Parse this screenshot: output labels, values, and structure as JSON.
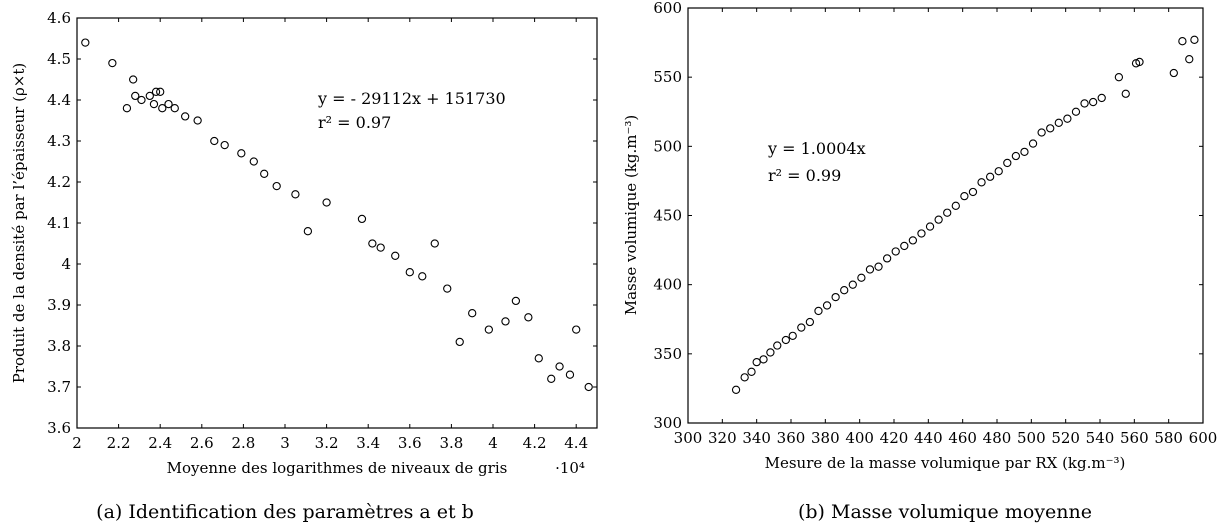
{
  "chart_data": [
    {
      "type": "scatter",
      "xlabel": "Moyenne des logarithmes de niveaux de gris",
      "ylabel": "Produit de la densité par l’épaisseur (ρ×t)",
      "x_multiplier": "·10⁴",
      "xlim": [
        2.0,
        4.5
      ],
      "ylim": [
        3.6,
        4.6
      ],
      "xticks": [
        "2",
        "2.2",
        "2.4",
        "2.6",
        "2.8",
        "3",
        "3.2",
        "3.4",
        "3.6",
        "3.8",
        "4",
        "4.2",
        "4.4"
      ],
      "yticks": [
        "3.6",
        "3.7",
        "3.8",
        "3.9",
        "4",
        "4.1",
        "4.2",
        "4.3",
        "4.4",
        "4.5",
        "4.6"
      ],
      "annotations": [
        "y = - 29112x + 151730",
        "r² = 0.97"
      ],
      "caption": "(a) Identification des paramètres a et b",
      "grid": false,
      "regression": {
        "slope": -29112,
        "intercept": 151730,
        "r2": 0.97
      },
      "series": [
        {
          "x": [
            2.04,
            2.17,
            2.27,
            2.28,
            2.31,
            2.35,
            2.37,
            2.38,
            2.4,
            2.41,
            2.44,
            2.47,
            2.24,
            2.52,
            2.58,
            2.66,
            2.71,
            2.79,
            2.85,
            2.9,
            2.96,
            3.05,
            3.11,
            3.2,
            3.37,
            3.42,
            3.46,
            3.53,
            3.6,
            3.66,
            3.72,
            3.78,
            3.84,
            3.9,
            3.98,
            4.06,
            4.11,
            4.17,
            4.22,
            4.28,
            4.32,
            4.37,
            4.4,
            4.46
          ],
          "y": [
            4.54,
            4.49,
            4.45,
            4.41,
            4.4,
            4.41,
            4.39,
            4.42,
            4.42,
            4.38,
            4.39,
            4.38,
            4.38,
            4.36,
            4.35,
            4.3,
            4.29,
            4.27,
            4.25,
            4.22,
            4.19,
            4.17,
            4.08,
            4.15,
            4.11,
            4.05,
            4.04,
            4.02,
            3.98,
            3.97,
            4.05,
            3.94,
            3.81,
            3.88,
            3.84,
            3.86,
            3.91,
            3.87,
            3.77,
            3.72,
            3.75,
            3.73,
            3.84,
            3.7
          ]
        }
      ]
    },
    {
      "type": "scatter",
      "xlabel": "Mesure de la masse volumique par RX (kg.m⁻³)",
      "ylabel": "Masse volumique (kg.m⁻³)",
      "xlim": [
        300,
        600
      ],
      "ylim": [
        300,
        600
      ],
      "xticks": [
        "300",
        "320",
        "340",
        "360",
        "380",
        "400",
        "420",
        "440",
        "460",
        "480",
        "500",
        "520",
        "540",
        "560",
        "580",
        "600"
      ],
      "yticks": [
        "300",
        "350",
        "400",
        "450",
        "500",
        "550",
        "600"
      ],
      "annotations": [
        "y = 1.0004x",
        "r² = 0.99"
      ],
      "caption": "(b) Masse volumique moyenne",
      "grid": false,
      "regression": {
        "slope": 1.0004,
        "intercept": 0,
        "r2": 0.99
      },
      "series": [
        {
          "x": [
            328,
            333,
            337,
            340,
            344,
            348,
            352,
            357,
            361,
            366,
            371,
            376,
            381,
            386,
            391,
            396,
            401,
            406,
            411,
            416,
            421,
            426,
            431,
            436,
            441,
            446,
            451,
            456,
            461,
            466,
            471,
            476,
            481,
            486,
            491,
            496,
            501,
            506,
            511,
            516,
            521,
            526,
            531,
            536,
            541,
            551,
            555,
            561,
            563,
            583,
            588,
            592,
            595
          ],
          "y": [
            324,
            333,
            337,
            344,
            346,
            351,
            356,
            360,
            363,
            369,
            373,
            381,
            385,
            391,
            396,
            400,
            405,
            411,
            413,
            419,
            424,
            428,
            432,
            437,
            442,
            447,
            452,
            457,
            464,
            467,
            474,
            478,
            482,
            488,
            493,
            496,
            502,
            510,
            513,
            517,
            520,
            525,
            531,
            532,
            535,
            550,
            538,
            560,
            561,
            553,
            576,
            563,
            577
          ]
        }
      ]
    }
  ]
}
